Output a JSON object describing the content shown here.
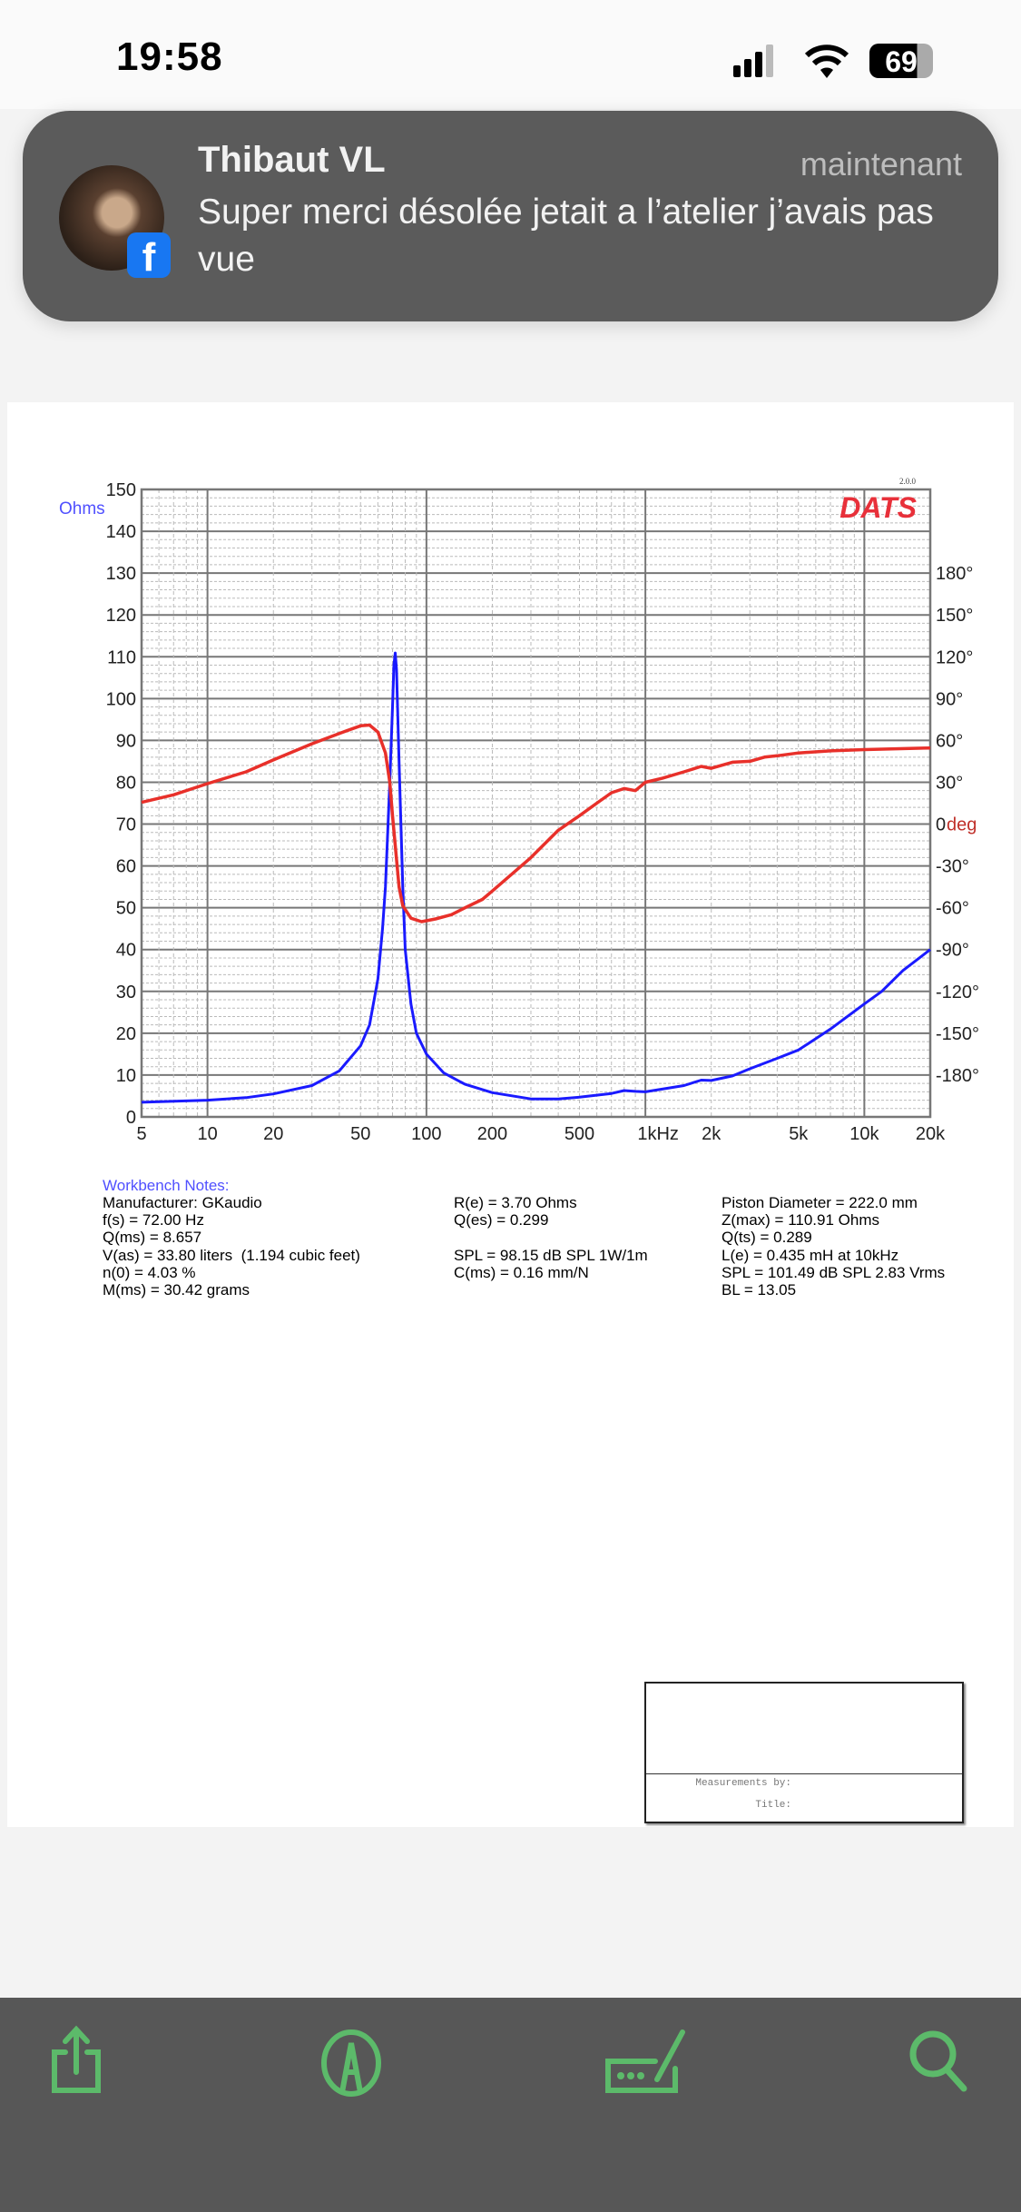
{
  "status_bar": {
    "time": "19:58",
    "battery": "69"
  },
  "notification": {
    "sender": "Thibaut VL",
    "time": "maintenant",
    "message": "Super merci désolée jetait a l’atelier j’avais pas vue",
    "app_icon": "facebook-icon"
  },
  "chart_data": {
    "type": "line",
    "logo": "DATS",
    "version": "2.0.0",
    "ylabel": "Ohms",
    "y2label": "deg",
    "xscale": "log",
    "xlim": [
      5,
      20000
    ],
    "ylim": [
      0,
      150
    ],
    "y2lim": [
      -210,
      240
    ],
    "grid": true,
    "xticks": [
      {
        "v": 5,
        "label": "5"
      },
      {
        "v": 10,
        "label": "10"
      },
      {
        "v": 20,
        "label": "20"
      },
      {
        "v": 50,
        "label": "50"
      },
      {
        "v": 100,
        "label": "100"
      },
      {
        "v": 200,
        "label": "200"
      },
      {
        "v": 500,
        "label": "500"
      },
      {
        "v": 1000,
        "label": "1kHz"
      },
      {
        "v": 2000,
        "label": "2k"
      },
      {
        "v": 5000,
        "label": "5k"
      },
      {
        "v": 10000,
        "label": "10k"
      },
      {
        "v": 20000,
        "label": "20k"
      }
    ],
    "yticks": [
      "0",
      "10",
      "20",
      "30",
      "40",
      "50",
      "60",
      "70",
      "80",
      "90",
      "100",
      "110",
      "120",
      "130",
      "140",
      "150"
    ],
    "y2ticks": [
      {
        "v": 180,
        "label": "180°"
      },
      {
        "v": 150,
        "label": "150°"
      },
      {
        "v": 120,
        "label": "120°"
      },
      {
        "v": 90,
        "label": "90°"
      },
      {
        "v": 60,
        "label": "60°"
      },
      {
        "v": 30,
        "label": "30°"
      },
      {
        "v": 0,
        "label": "0"
      },
      {
        "v": -30,
        "label": "-30°"
      },
      {
        "v": -60,
        "label": "-60°"
      },
      {
        "v": -90,
        "label": "-90°"
      },
      {
        "v": -120,
        "label": "-120°"
      },
      {
        "v": -150,
        "label": "-150°"
      },
      {
        "v": -180,
        "label": "-180°"
      }
    ],
    "series": [
      {
        "key": "impedance",
        "axis": "left",
        "color": "#1a1aff",
        "points": [
          [
            5,
            3.5
          ],
          [
            10,
            4
          ],
          [
            15,
            4.6
          ],
          [
            20,
            5.5
          ],
          [
            30,
            7.5
          ],
          [
            40,
            11
          ],
          [
            50,
            17
          ],
          [
            55,
            22
          ],
          [
            60,
            33
          ],
          [
            63,
            45
          ],
          [
            65,
            55
          ],
          [
            68,
            80
          ],
          [
            70,
            98
          ],
          [
            71,
            108
          ],
          [
            72,
            110.9
          ],
          [
            73,
            107
          ],
          [
            75,
            85
          ],
          [
            78,
            55
          ],
          [
            80,
            40
          ],
          [
            85,
            27
          ],
          [
            90,
            20
          ],
          [
            100,
            15
          ],
          [
            120,
            10.5
          ],
          [
            150,
            7.8
          ],
          [
            200,
            5.8
          ],
          [
            300,
            4.3
          ],
          [
            400,
            4.3
          ],
          [
            500,
            4.7
          ],
          [
            700,
            5.6
          ],
          [
            800,
            6.3
          ],
          [
            900,
            6.1
          ],
          [
            1000,
            6.0
          ],
          [
            1500,
            7.5
          ],
          [
            1800,
            8.8
          ],
          [
            2000,
            8.7
          ],
          [
            2500,
            9.8
          ],
          [
            3000,
            11.5
          ],
          [
            4000,
            14
          ],
          [
            5000,
            16
          ],
          [
            7000,
            21
          ],
          [
            10000,
            27
          ],
          [
            12000,
            30
          ],
          [
            15000,
            35
          ],
          [
            20000,
            40
          ]
        ]
      },
      {
        "key": "phase",
        "axis": "right",
        "color": "#e8302a",
        "points": [
          [
            5,
            15.6
          ],
          [
            7,
            21
          ],
          [
            10,
            29
          ],
          [
            15,
            37.5
          ],
          [
            20,
            46
          ],
          [
            30,
            57.6
          ],
          [
            40,
            65
          ],
          [
            50,
            70.5
          ],
          [
            55,
            71
          ],
          [
            60,
            66
          ],
          [
            65,
            51
          ],
          [
            68,
            30
          ],
          [
            70,
            6
          ],
          [
            75,
            -45
          ],
          [
            78,
            -58.5
          ],
          [
            85,
            -67.5
          ],
          [
            95,
            -70
          ],
          [
            110,
            -68
          ],
          [
            130,
            -65
          ],
          [
            150,
            -60
          ],
          [
            180,
            -54
          ],
          [
            200,
            -48
          ],
          [
            300,
            -24
          ],
          [
            400,
            -4.5
          ],
          [
            500,
            6
          ],
          [
            600,
            15
          ],
          [
            700,
            22.5
          ],
          [
            800,
            25.5
          ],
          [
            900,
            24
          ],
          [
            1000,
            30
          ],
          [
            1200,
            33
          ],
          [
            1500,
            37.5
          ],
          [
            1800,
            41.4
          ],
          [
            2000,
            40
          ],
          [
            2500,
            44.4
          ],
          [
            3000,
            45
          ],
          [
            3500,
            48
          ],
          [
            4000,
            49
          ],
          [
            5000,
            51
          ],
          [
            7000,
            52.5
          ],
          [
            10000,
            53.4
          ],
          [
            20000,
            54.6
          ]
        ]
      }
    ]
  },
  "notes": {
    "heading": "Workbench Notes:",
    "col1": [
      "Manufacturer: GKaudio",
      "f(s) = 72.00 Hz",
      "Q(ms) = 8.657",
      "V(as) = 33.80 liters  (1.194 cubic feet)",
      "n(0) = 4.03 %",
      "M(ms) = 30.42 grams"
    ],
    "col2": [
      "R(e) = 3.70 Ohms",
      "Q(es) = 0.299",
      "",
      "SPL = 98.15 dB SPL 1W/1m",
      "C(ms) = 0.16 mm/N",
      ""
    ],
    "col3": [
      "Piston Diameter = 222.0 mm",
      "Z(max) = 110.91 Ohms",
      "Q(ts) = 0.289",
      "L(e) = 0.435 mH at 10kHz",
      "SPL = 101.49 dB SPL 2.83 Vrms",
      "BL = 13.05"
    ]
  },
  "title_block": {
    "measurements_by": "Measurements by:",
    "title": "Title:"
  },
  "toolbar": {
    "accent": "#5cba6a",
    "items": [
      "share-icon",
      "markup-icon",
      "signature-icon",
      "search-icon"
    ]
  }
}
